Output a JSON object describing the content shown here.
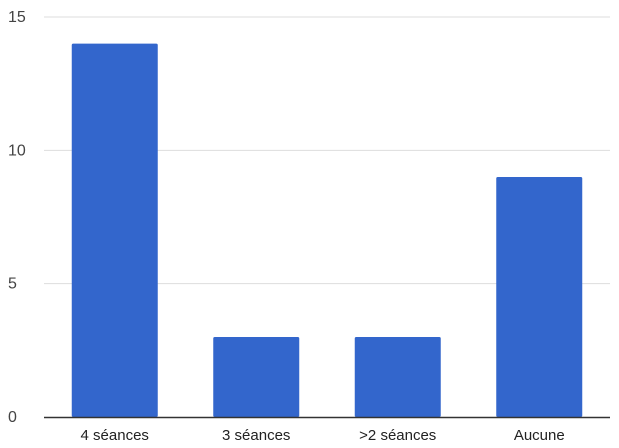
{
  "chart_data": {
    "type": "bar",
    "categories": [
      "4 séances",
      "3 séances",
      ">2 séances",
      "Aucune"
    ],
    "values": [
      14,
      3,
      3,
      9
    ],
    "ylim": [
      0,
      15
    ],
    "yticks": [
      0,
      5,
      10,
      15
    ],
    "grid": true,
    "legend": "none",
    "bar_color": "#3366cc",
    "gridline_color": "#dddddd",
    "axis_color": "#333333"
  }
}
